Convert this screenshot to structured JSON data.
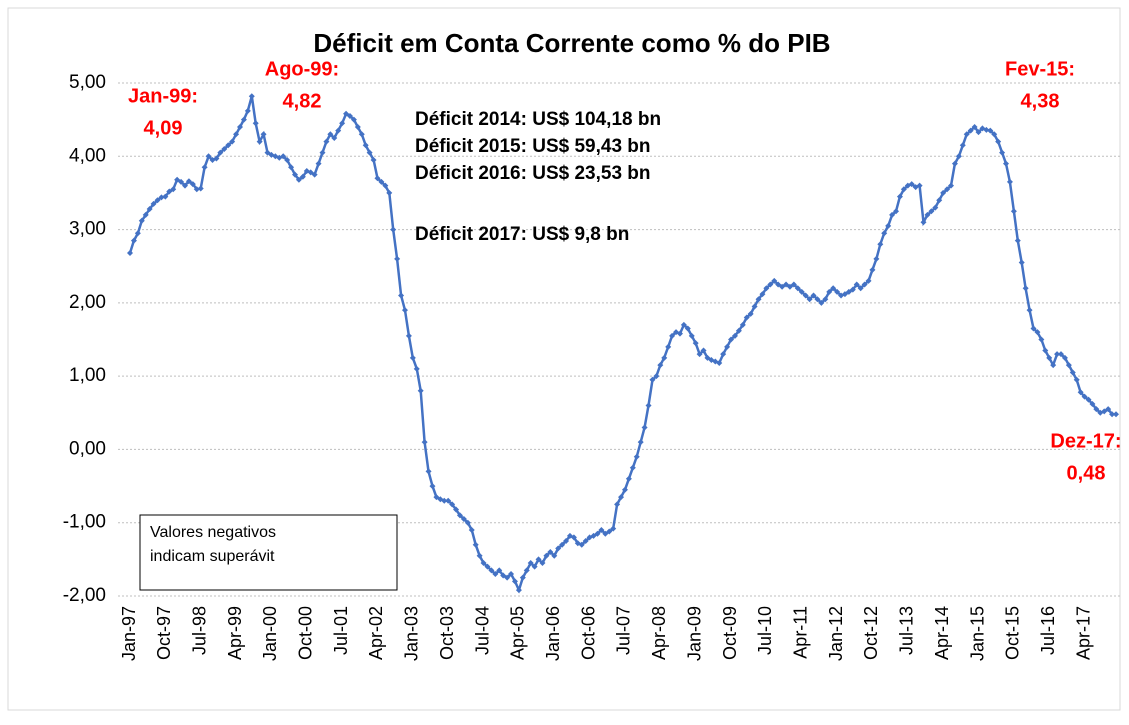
{
  "chart_data": {
    "type": "line",
    "title": "Déficit em Conta Corrente como % do PIB",
    "categories": [
      "Jan-97",
      null,
      null,
      null,
      null,
      null,
      null,
      null,
      null,
      "Oct-97",
      null,
      null,
      null,
      null,
      null,
      null,
      null,
      null,
      "Jul-98",
      null,
      null,
      null,
      null,
      null,
      null,
      null,
      null,
      "Apr-99",
      null,
      null,
      null,
      null,
      null,
      null,
      null,
      null,
      "Jan-00",
      null,
      null,
      null,
      null,
      null,
      null,
      null,
      null,
      "Oct-00",
      null,
      null,
      null,
      null,
      null,
      null,
      null,
      null,
      "Jul-01",
      null,
      null,
      null,
      null,
      null,
      null,
      null,
      null,
      "Apr-02",
      null,
      null,
      null,
      null,
      null,
      null,
      null,
      null,
      "Jan-03",
      null,
      null,
      null,
      null,
      null,
      null,
      null,
      null,
      "Oct-03",
      null,
      null,
      null,
      null,
      null,
      null,
      null,
      null,
      "Jul-04",
      null,
      null,
      null,
      null,
      null,
      null,
      null,
      null,
      "Apr-05",
      null,
      null,
      null,
      null,
      null,
      null,
      null,
      null,
      "Jan-06",
      null,
      null,
      null,
      null,
      null,
      null,
      null,
      null,
      "Oct-06",
      null,
      null,
      null,
      null,
      null,
      null,
      null,
      null,
      "Jul-07",
      null,
      null,
      null,
      null,
      null,
      null,
      null,
      null,
      "Apr-08",
      null,
      null,
      null,
      null,
      null,
      null,
      null,
      null,
      "Jan-09",
      null,
      null,
      null,
      null,
      null,
      null,
      null,
      null,
      "Oct-09",
      null,
      null,
      null,
      null,
      null,
      null,
      null,
      null,
      "Jul-10",
      null,
      null,
      null,
      null,
      null,
      null,
      null,
      null,
      "Apr-11",
      null,
      null,
      null,
      null,
      null,
      null,
      null,
      null,
      "Jan-12",
      null,
      null,
      null,
      null,
      null,
      null,
      null,
      null,
      "Oct-12",
      null,
      null,
      null,
      null,
      null,
      null,
      null,
      null,
      "Jul-13",
      null,
      null,
      null,
      null,
      null,
      null,
      null,
      null,
      "Apr-14",
      null,
      null,
      null,
      null,
      null,
      null,
      null,
      null,
      "Jan-15",
      null,
      null,
      null,
      null,
      null,
      null,
      null,
      null,
      "Oct-15",
      null,
      null,
      null,
      null,
      null,
      null,
      null,
      null,
      "Jul-16",
      null,
      null,
      null,
      null,
      null,
      null,
      null,
      null,
      "Apr-17",
      null,
      null,
      null,
      null,
      null,
      null,
      null,
      null
    ],
    "values": [
      2.68,
      2.85,
      2.95,
      3.12,
      3.2,
      3.28,
      3.35,
      3.4,
      3.44,
      3.45,
      3.52,
      3.55,
      3.68,
      3.65,
      3.6,
      3.66,
      3.62,
      3.55,
      3.56,
      3.85,
      4.0,
      3.95,
      3.97,
      4.05,
      4.1,
      4.15,
      4.2,
      4.3,
      4.4,
      4.5,
      4.62,
      4.82,
      4.45,
      4.2,
      4.3,
      4.05,
      4.02,
      4.0,
      3.98,
      4.0,
      3.95,
      3.85,
      3.75,
      3.68,
      3.72,
      3.8,
      3.78,
      3.75,
      3.9,
      4.05,
      4.2,
      4.3,
      4.25,
      4.35,
      4.45,
      4.58,
      4.55,
      4.5,
      4.4,
      4.3,
      4.15,
      4.05,
      3.95,
      3.7,
      3.65,
      3.6,
      3.5,
      3.0,
      2.6,
      2.1,
      1.9,
      1.55,
      1.25,
      1.1,
      0.8,
      0.1,
      -0.3,
      -0.5,
      -0.65,
      -0.68,
      -0.7,
      -0.7,
      -0.75,
      -0.82,
      -0.9,
      -0.95,
      -1.0,
      -1.1,
      -1.3,
      -1.45,
      -1.55,
      -1.6,
      -1.65,
      -1.7,
      -1.65,
      -1.72,
      -1.75,
      -1.7,
      -1.8,
      -1.92,
      -1.75,
      -1.65,
      -1.55,
      -1.6,
      -1.5,
      -1.55,
      -1.45,
      -1.4,
      -1.45,
      -1.35,
      -1.3,
      -1.25,
      -1.18,
      -1.2,
      -1.28,
      -1.3,
      -1.25,
      -1.2,
      -1.18,
      -1.15,
      -1.1,
      -1.15,
      -1.12,
      -1.08,
      -0.75,
      -0.65,
      -0.55,
      -0.4,
      -0.25,
      -0.1,
      0.1,
      0.3,
      0.6,
      0.95,
      1.0,
      1.15,
      1.25,
      1.4,
      1.55,
      1.6,
      1.58,
      1.7,
      1.65,
      1.55,
      1.45,
      1.3,
      1.35,
      1.25,
      1.22,
      1.2,
      1.18,
      1.3,
      1.4,
      1.5,
      1.55,
      1.62,
      1.7,
      1.8,
      1.85,
      1.95,
      2.05,
      2.12,
      2.2,
      2.25,
      2.3,
      2.25,
      2.22,
      2.25,
      2.22,
      2.25,
      2.2,
      2.15,
      2.1,
      2.05,
      2.1,
      2.05,
      2.0,
      2.05,
      2.15,
      2.2,
      2.15,
      2.1,
      2.12,
      2.15,
      2.18,
      2.25,
      2.2,
      2.25,
      2.3,
      2.45,
      2.6,
      2.8,
      2.95,
      3.05,
      3.2,
      3.25,
      3.45,
      3.55,
      3.6,
      3.62,
      3.58,
      3.6,
      3.1,
      3.2,
      3.25,
      3.3,
      3.4,
      3.5,
      3.55,
      3.6,
      3.9,
      4.0,
      4.15,
      4.3,
      4.35,
      4.4,
      4.33,
      4.38,
      4.36,
      4.35,
      4.3,
      4.2,
      4.05,
      3.9,
      3.65,
      3.25,
      2.85,
      2.55,
      2.2,
      1.9,
      1.65,
      1.6,
      1.5,
      1.35,
      1.25,
      1.15,
      1.3,
      1.3,
      1.25,
      1.15,
      1.05,
      0.95,
      0.78,
      0.72,
      0.68,
      0.62,
      0.55,
      0.5,
      0.52,
      0.55,
      0.48,
      0.48
    ],
    "color": "#4472c4",
    "ylim": [
      -2,
      5
    ],
    "yticks": [
      {
        "value": -2,
        "label": "-2,00"
      },
      {
        "value": -1,
        "label": "-1,00"
      },
      {
        "value": 0,
        "label": "0,00"
      },
      {
        "value": 1,
        "label": "1,00"
      },
      {
        "value": 2,
        "label": "2,00"
      },
      {
        "value": 3,
        "label": "3,00"
      },
      {
        "value": 4,
        "label": "4,00"
      },
      {
        "value": 5,
        "label": "5,00"
      }
    ],
    "grid": true,
    "annotations": [
      {
        "lines": [
          "Jan-99:",
          "4,09"
        ]
      },
      {
        "lines": [
          "Ago-99:",
          "4,82"
        ]
      },
      {
        "lines": [
          "Fev-15:",
          "4,38"
        ]
      },
      {
        "lines": [
          "Dez-17:",
          "0,48"
        ]
      }
    ],
    "info": [
      "Déficit 2014: US$ 104,18 bn",
      "Déficit 2015: US$ 59,43 bn",
      "Déficit 2016: US$ 23,53 bn",
      "Déficit 2017: US$ 9,8 bn"
    ],
    "note": [
      "Valores negativos",
      "indicam superávit"
    ]
  }
}
